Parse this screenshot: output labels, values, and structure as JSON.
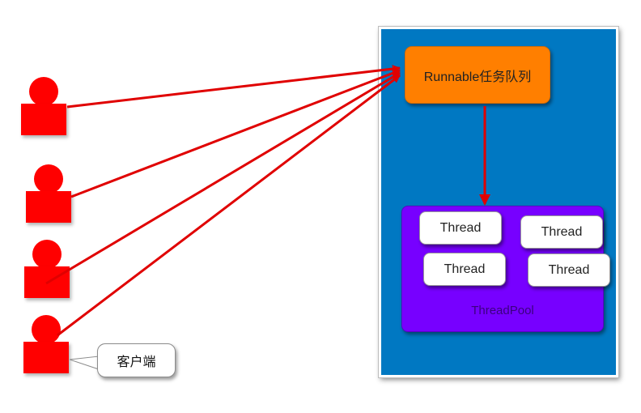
{
  "diagram": {
    "task_queue": {
      "label": "Runnable任务队列"
    },
    "thread_pool": {
      "label": "ThreadPool",
      "threads": [
        "Thread",
        "Thread",
        "Thread",
        "Thread"
      ]
    },
    "client_callout": {
      "label": "客户端"
    },
    "client_count": 4
  },
  "colors": {
    "client": "#ff0000",
    "arrow": "#e00000",
    "server_panel": "#0078c2",
    "task_queue": "#ff7f00",
    "thread_pool": "#7700ff",
    "thread_box": "#ffffff"
  }
}
